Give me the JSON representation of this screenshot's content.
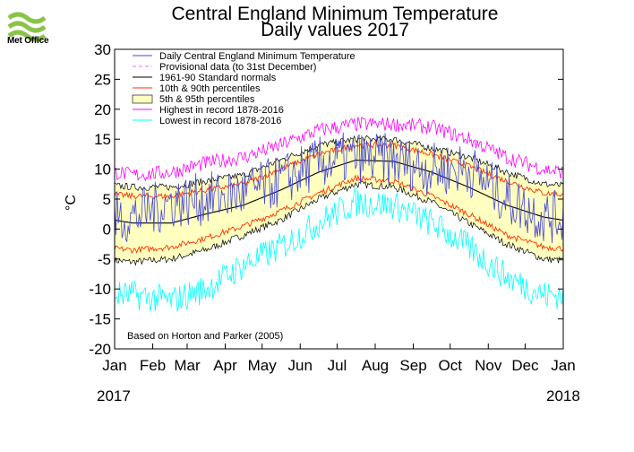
{
  "brand": {
    "name": "Met Office"
  },
  "chart_data": {
    "type": "line",
    "title": "Central England Minimum Temperature",
    "subtitle": "Daily values 2017",
    "ylabel": "°C",
    "ylim": [
      -20,
      30
    ],
    "yticks": [
      30,
      25,
      20,
      15,
      10,
      5,
      0,
      -5,
      -10,
      -15,
      -20
    ],
    "x_tick_labels": [
      "Jan",
      "Feb",
      "Mar",
      "Apr",
      "May",
      "Jun",
      "Jul",
      "Aug",
      "Sep",
      "Oct",
      "Nov",
      "Dec",
      "Jan"
    ],
    "year_start": "2017",
    "year_end": "2018",
    "annotation": "Based on Horton and Parker (2005)",
    "legend_position": "top-left",
    "legend": [
      {
        "label": "Daily Central England Minimum Temperature",
        "color": "#4444dd",
        "style": "line"
      },
      {
        "label": "Provisional data (to 31st December)",
        "color": "#ff66ff",
        "style": "dashed"
      },
      {
        "label": "1961-90 Standard normals",
        "color": "#000000",
        "style": "line"
      },
      {
        "label": "10th & 90th percentiles",
        "color": "#ff3300",
        "style": "line"
      },
      {
        "label": "5th & 95th percentiles",
        "color": "#ffffbf",
        "style": "fill"
      },
      {
        "label": "Highest in record 1878-2016",
        "color": "#ff00ff",
        "style": "line"
      },
      {
        "label": "Lowest in record 1878-2016",
        "color": "#00ffff",
        "style": "line"
      }
    ],
    "series_monthly": {
      "months_mid": [
        "Jan",
        "Feb",
        "Mar",
        "Apr",
        "May",
        "Jun",
        "Jul",
        "Aug",
        "Sep",
        "Oct",
        "Nov",
        "Dec"
      ],
      "normals": [
        1.0,
        1.0,
        2.5,
        4.0,
        6.5,
        9.5,
        11.5,
        11.3,
        9.5,
        7.0,
        4.0,
        2.0
      ],
      "p10": [
        -3.5,
        -3.0,
        -1.5,
        0.5,
        3.0,
        6.0,
        8.5,
        8.0,
        5.5,
        2.5,
        -1.0,
        -3.0
      ],
      "p90": [
        5.5,
        5.5,
        6.5,
        7.5,
        10.0,
        12.5,
        14.0,
        14.0,
        12.5,
        10.5,
        8.0,
        6.0
      ],
      "p05": [
        -5.5,
        -5.0,
        -3.5,
        -1.0,
        1.5,
        5.0,
        7.5,
        7.0,
        4.5,
        1.0,
        -2.5,
        -5.0
      ],
      "p95": [
        7.0,
        7.0,
        8.0,
        9.0,
        11.5,
        14.0,
        15.0,
        15.0,
        13.5,
        12.0,
        9.5,
        7.5
      ],
      "highest": [
        9.0,
        9.5,
        11.0,
        12.0,
        14.0,
        16.5,
        17.5,
        17.5,
        17.0,
        15.0,
        12.0,
        10.0
      ],
      "lowest": [
        -11.0,
        -12.0,
        -10.0,
        -6.0,
        -3.0,
        1.0,
        4.5,
        4.0,
        1.0,
        -3.0,
        -8.0,
        -11.0
      ],
      "daily_2017": [
        2.0,
        4.5,
        5.0,
        6.0,
        8.0,
        11.0,
        12.0,
        11.5,
        10.0,
        10.0,
        5.0,
        2.0
      ]
    }
  }
}
